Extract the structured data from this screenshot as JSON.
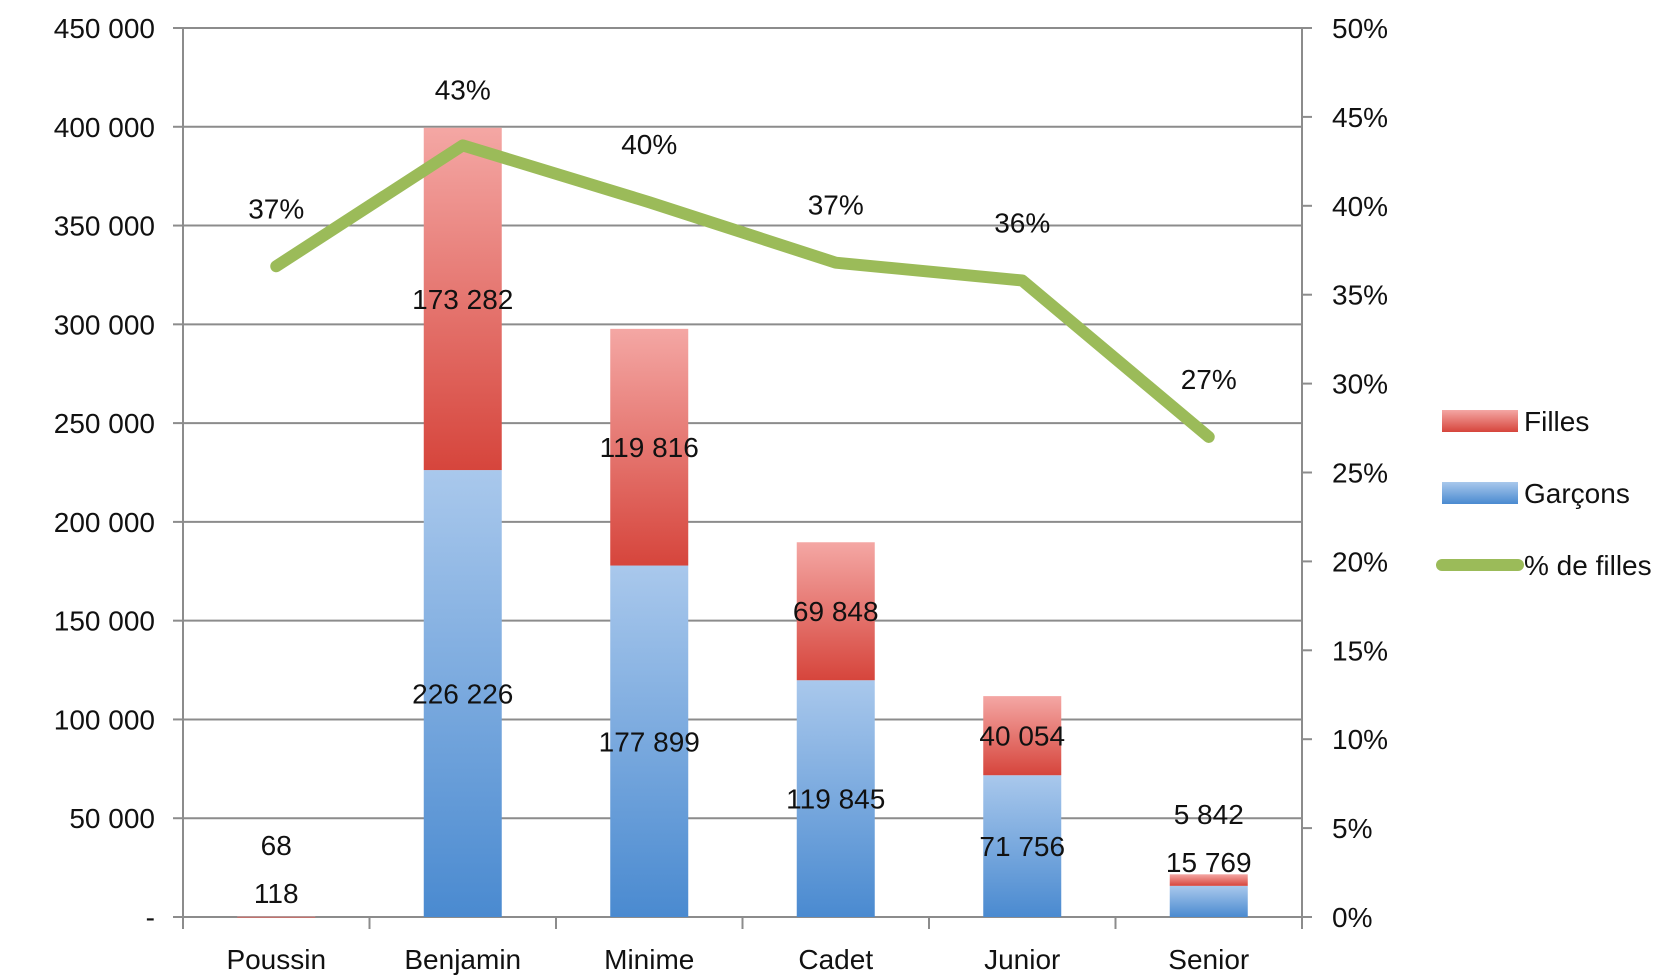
{
  "chart_data": {
    "type": "bar",
    "stacked": true,
    "categories": [
      "Poussin",
      "Benjamin",
      "Minime",
      "Cadet",
      "Junior",
      "Senior"
    ],
    "series": [
      {
        "name": "Garçons",
        "type": "bar",
        "axis": "left",
        "values": [
          118,
          226226,
          177899,
          119845,
          71756,
          15769
        ],
        "labels": [
          "118",
          "226 226",
          "177 899",
          "119 845",
          "71 756",
          "15 769"
        ],
        "color": "#5b9bd5"
      },
      {
        "name": "Filles",
        "type": "bar",
        "axis": "left",
        "values": [
          68,
          173282,
          119816,
          69848,
          40054,
          5842
        ],
        "labels": [
          "68",
          "173 282",
          "119 816",
          "69 848",
          "40 054",
          "5 842"
        ],
        "color": "#e0534b"
      },
      {
        "name": "% de filles",
        "type": "line",
        "axis": "right",
        "values": [
          0.366,
          0.434,
          0.402,
          0.368,
          0.358,
          0.27
        ],
        "labels": [
          "37%",
          "43%",
          "40%",
          "37%",
          "36%",
          "27%"
        ],
        "color": "#9bbb59"
      }
    ],
    "y_left": {
      "min": 0,
      "max": 450000,
      "ticks": [
        0,
        50000,
        100000,
        150000,
        200000,
        250000,
        300000,
        350000,
        400000,
        450000
      ],
      "tick_labels": [
        "-",
        "50 000",
        "100 000",
        "150 000",
        "200 000",
        "250 000",
        "300 000",
        "350 000",
        "400 000",
        "450 000"
      ]
    },
    "y_right": {
      "min": 0,
      "max": 0.5,
      "ticks": [
        0,
        0.05,
        0.1,
        0.15,
        0.2,
        0.25,
        0.3,
        0.35,
        0.4,
        0.45,
        0.5
      ],
      "tick_labels": [
        "0%",
        "5%",
        "10%",
        "15%",
        "20%",
        "25%",
        "30%",
        "35%",
        "40%",
        "45%",
        "50%"
      ]
    },
    "grid": true,
    "legend": {
      "position": "right",
      "order": [
        "Filles",
        "Garçons",
        "% de filles"
      ]
    }
  }
}
